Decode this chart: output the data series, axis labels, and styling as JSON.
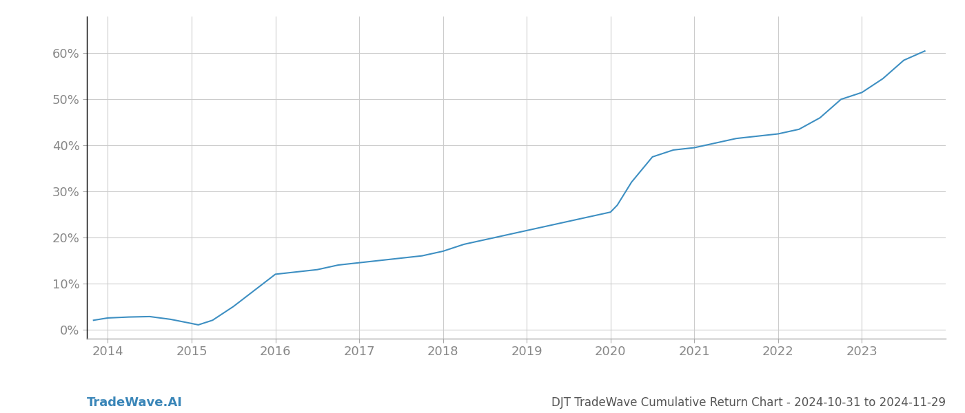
{
  "x_values": [
    2013.83,
    2014.0,
    2014.25,
    2014.5,
    2014.75,
    2015.0,
    2015.08,
    2015.25,
    2015.5,
    2015.75,
    2016.0,
    2016.25,
    2016.5,
    2016.75,
    2017.0,
    2017.25,
    2017.5,
    2017.75,
    2018.0,
    2018.25,
    2018.5,
    2018.75,
    2019.0,
    2019.25,
    2019.5,
    2019.75,
    2020.0,
    2020.08,
    2020.25,
    2020.5,
    2020.75,
    2021.0,
    2021.25,
    2021.5,
    2021.75,
    2022.0,
    2022.25,
    2022.5,
    2022.75,
    2023.0,
    2023.25,
    2023.5,
    2023.75
  ],
  "y_values": [
    0.02,
    0.025,
    0.027,
    0.028,
    0.022,
    0.013,
    0.01,
    0.02,
    0.05,
    0.085,
    0.12,
    0.125,
    0.13,
    0.14,
    0.145,
    0.15,
    0.155,
    0.16,
    0.17,
    0.185,
    0.195,
    0.205,
    0.215,
    0.225,
    0.235,
    0.245,
    0.255,
    0.27,
    0.32,
    0.375,
    0.39,
    0.395,
    0.405,
    0.415,
    0.42,
    0.425,
    0.435,
    0.46,
    0.5,
    0.515,
    0.545,
    0.585,
    0.605
  ],
  "line_color": "#3d8fc2",
  "line_width": 1.5,
  "title": "DJT TradeWave Cumulative Return Chart - 2024-10-31 to 2024-11-29",
  "watermark": "TradeWave.AI",
  "xlim": [
    2013.75,
    2024.0
  ],
  "ylim": [
    -0.02,
    0.68
  ],
  "xticks": [
    2014,
    2015,
    2016,
    2017,
    2018,
    2019,
    2020,
    2021,
    2022,
    2023
  ],
  "yticks": [
    0.0,
    0.1,
    0.2,
    0.3,
    0.4,
    0.5,
    0.6
  ],
  "grid_color": "#cccccc",
  "background_color": "#ffffff",
  "tick_label_color": "#888888",
  "title_color": "#555555",
  "watermark_color": "#3a86b8",
  "tick_fontsize": 13,
  "title_fontsize": 12,
  "watermark_fontsize": 13,
  "left_spine_color": "#000000"
}
